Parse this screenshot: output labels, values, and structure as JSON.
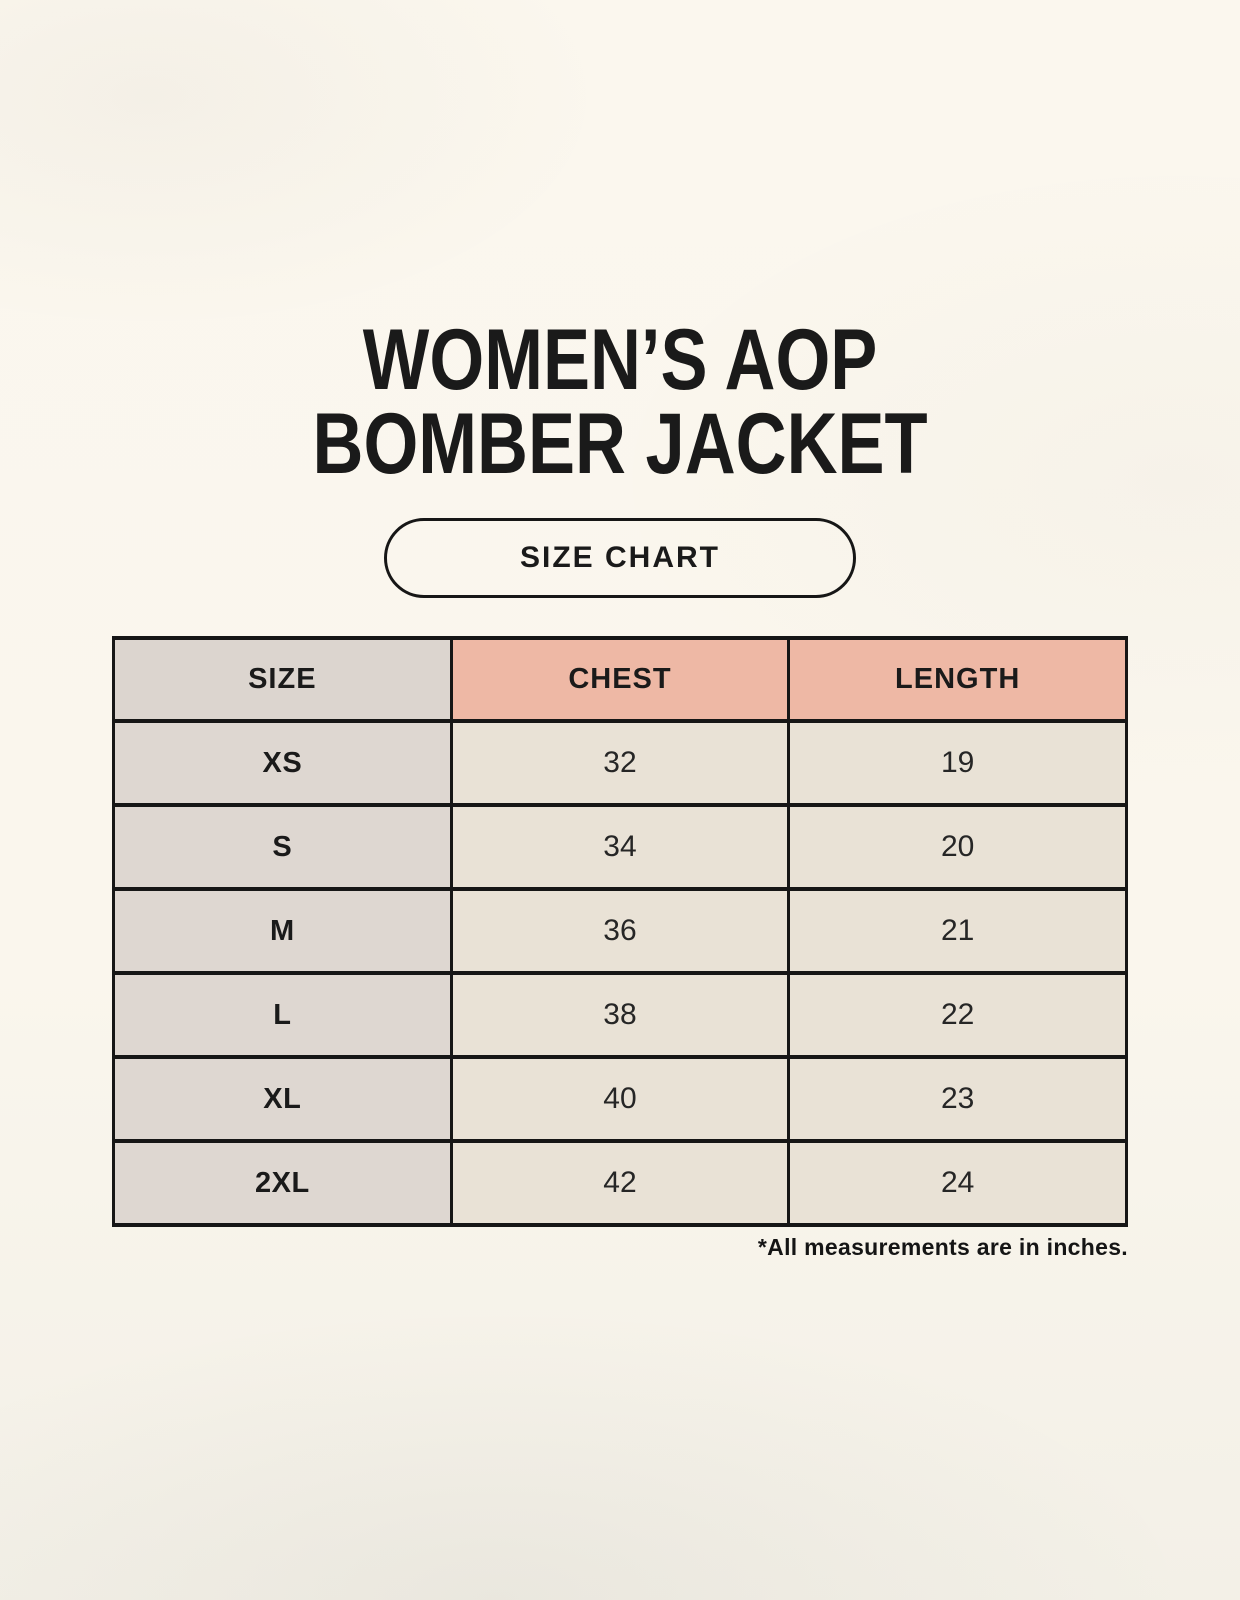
{
  "page": {
    "title_line1": "WOMEN’S AOP",
    "title_line2": "BOMBER JACKET",
    "badge_label": "SIZE CHART",
    "footnote": "*All measurements are in inches."
  },
  "size_chart": {
    "columns": [
      "SIZE",
      "CHEST",
      "LENGTH"
    ],
    "rows": [
      [
        "XS",
        "32",
        "19"
      ],
      [
        "S",
        "34",
        "20"
      ],
      [
        "M",
        "36",
        "21"
      ],
      [
        "L",
        "38",
        "22"
      ],
      [
        "XL",
        "40",
        "23"
      ],
      [
        "2XL",
        "42",
        "24"
      ]
    ],
    "units_note": "inches"
  },
  "colors": {
    "background": "#faf6ed",
    "header_size_bg": "#dcd5cf",
    "header_measure_bg": "#eeb8a5",
    "row_label_bg": "#ded7d1",
    "row_value_bg": "#e9e2d6",
    "border": "#161616",
    "text": "#1a1a1a"
  }
}
